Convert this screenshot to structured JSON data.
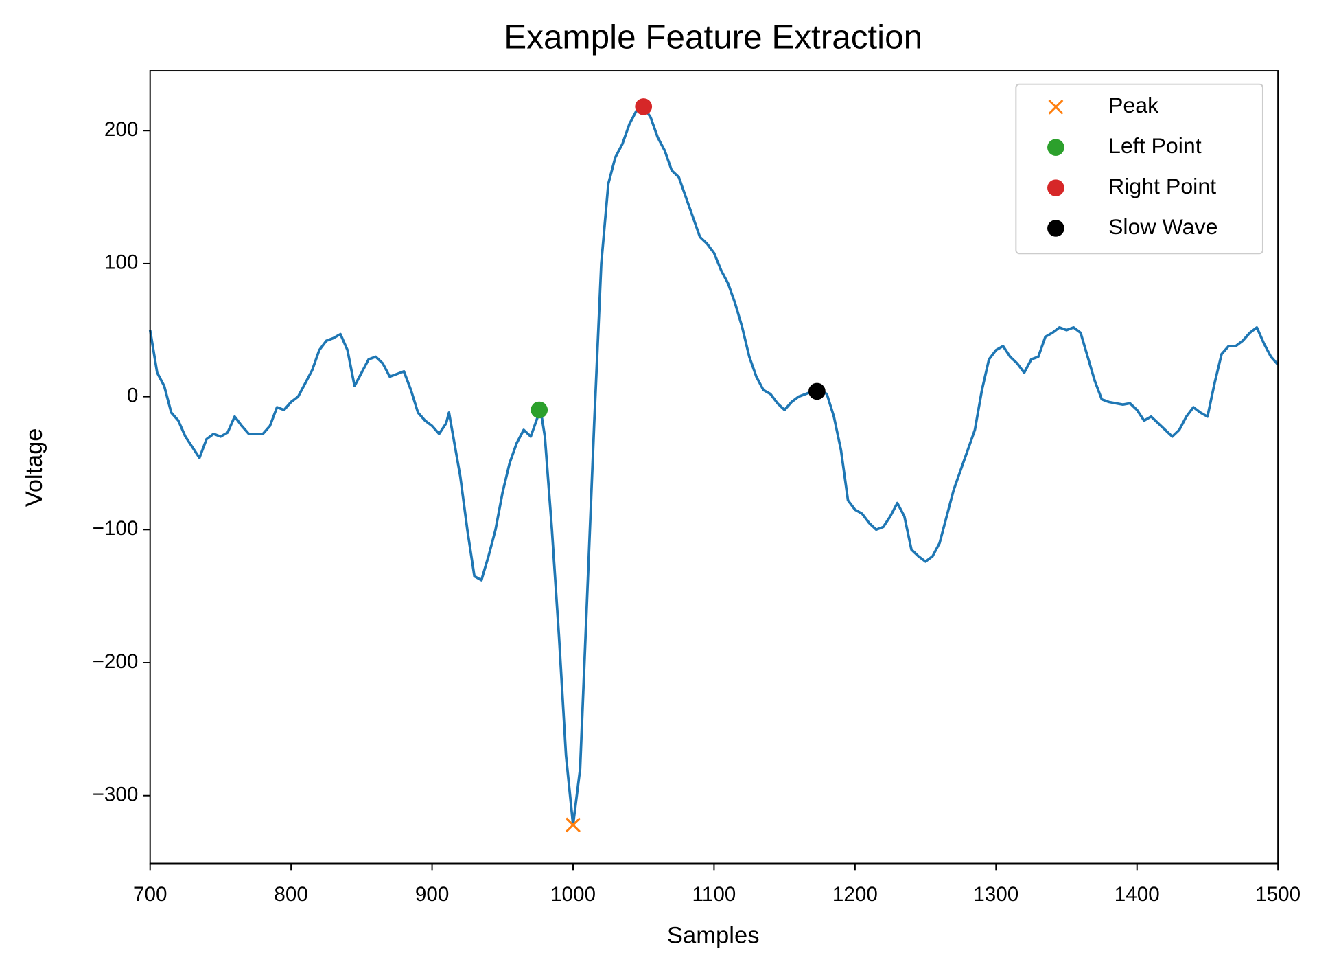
{
  "chart_data": {
    "type": "line",
    "title": "Example Feature Extraction",
    "xlabel": "Samples",
    "ylabel": "Voltage",
    "xlim": [
      700,
      1500
    ],
    "xticks": [
      700,
      800,
      900,
      1000,
      1100,
      1200,
      1300,
      1400,
      1500
    ],
    "ylim": [
      -351,
      245
    ],
    "yticks": [
      {
        "value": -300,
        "label": "−300"
      },
      {
        "value": -200,
        "label": "−200"
      },
      {
        "value": -100,
        "label": "−100"
      },
      0,
      100,
      200
    ],
    "legend": "upper right",
    "grid": false,
    "series": [
      {
        "color": "#1f77b4",
        "marker": "none",
        "x": [
          700,
          705,
          710,
          715,
          720,
          725,
          730,
          735,
          740,
          745,
          750,
          755,
          760,
          765,
          770,
          775,
          780,
          785,
          790,
          795,
          800,
          805,
          810,
          815,
          820,
          825,
          830,
          835,
          840,
          845,
          850,
          855,
          860,
          865,
          870,
          875,
          880,
          885,
          890,
          895,
          900,
          905,
          910,
          912,
          915,
          920,
          925,
          930,
          935,
          940,
          945,
          950,
          955,
          960,
          965,
          970,
          975,
          977,
          980,
          985,
          990,
          995,
          1000,
          1005,
          1010,
          1015,
          1020,
          1025,
          1030,
          1035,
          1040,
          1045,
          1050,
          1055,
          1060,
          1065,
          1070,
          1075,
          1080,
          1085,
          1090,
          1095,
          1100,
          1105,
          1110,
          1115,
          1120,
          1125,
          1130,
          1135,
          1140,
          1145,
          1150,
          1155,
          1160,
          1165,
          1170,
          1175,
          1180,
          1185,
          1190,
          1195,
          1200,
          1205,
          1210,
          1215,
          1220,
          1225,
          1230,
          1235,
          1240,
          1245,
          1250,
          1255,
          1260,
          1265,
          1270,
          1275,
          1280,
          1285,
          1290,
          1295,
          1300,
          1305,
          1310,
          1315,
          1320,
          1325,
          1330,
          1335,
          1340,
          1345,
          1350,
          1355,
          1360,
          1365,
          1370,
          1375,
          1380,
          1385,
          1390,
          1395,
          1400,
          1405,
          1410,
          1415,
          1420,
          1425,
          1430,
          1435,
          1440,
          1445,
          1450,
          1455,
          1460,
          1465,
          1470,
          1475,
          1480,
          1485,
          1490,
          1495,
          1500
        ],
        "values": [
          50,
          18,
          8,
          -12,
          -18,
          -30,
          -38,
          -46,
          -32,
          -28,
          -30,
          -27,
          -15,
          -22,
          -28,
          -28,
          -28,
          -22,
          -8,
          -10,
          -4,
          0,
          10,
          20,
          35,
          42,
          44,
          47,
          35,
          8,
          18,
          28,
          30,
          25,
          15,
          17,
          19,
          5,
          -12,
          -18,
          -22,
          -28,
          -20,
          -12,
          -30,
          -60,
          -100,
          -135,
          -138,
          -120,
          -100,
          -72,
          -50,
          -35,
          -25,
          -30,
          -15,
          -10,
          -30,
          -100,
          -180,
          -270,
          -322,
          -280,
          -150,
          -20,
          100,
          160,
          180,
          190,
          205,
          215,
          218,
          210,
          195,
          185,
          170,
          165,
          150,
          135,
          120,
          115,
          108,
          95,
          85,
          70,
          52,
          30,
          15,
          5,
          2,
          -5,
          -10,
          -4,
          0,
          2,
          4,
          5,
          2,
          -15,
          -40,
          -78,
          -85,
          -88,
          -95,
          -100,
          -98,
          -90,
          -80,
          -90,
          -115,
          -120,
          -124,
          -120,
          -110,
          -90,
          -70,
          -55,
          -40,
          -25,
          5,
          28,
          35,
          38,
          30,
          25,
          18,
          28,
          30,
          45,
          48,
          52,
          50,
          52,
          48,
          30,
          12,
          -2,
          -4,
          -5,
          -6,
          -5,
          -10,
          -18,
          -15,
          -20,
          -25,
          -30,
          -25,
          -15,
          -8,
          -12,
          -15,
          10,
          32,
          38,
          38,
          42,
          48,
          52,
          40,
          30,
          24
        ]
      },
      {
        "name": "Peak",
        "color": "#ff7f0e",
        "marker": "x",
        "x": [
          1000
        ],
        "values": [
          -322
        ]
      },
      {
        "name": "Left Point",
        "color": "#2ca02c",
        "marker": "o",
        "x": [
          976
        ],
        "values": [
          -10
        ]
      },
      {
        "name": "Right Point",
        "color": "#d62728",
        "marker": "o",
        "x": [
          1050
        ],
        "values": [
          218
        ]
      },
      {
        "name": "Slow Wave",
        "color": "#000000",
        "marker": "o",
        "x": [
          1173
        ],
        "values": [
          4
        ]
      }
    ]
  }
}
